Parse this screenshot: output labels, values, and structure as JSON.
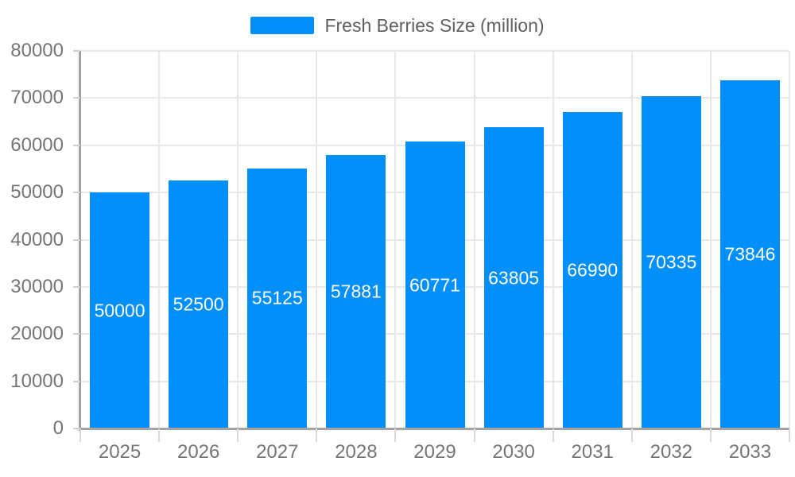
{
  "legend": {
    "label": "Fresh Berries Size (million)"
  },
  "chart_data": {
    "type": "bar",
    "title": "",
    "xlabel": "",
    "ylabel": "",
    "series_name": "Fresh Berries Size (million)",
    "categories": [
      "2025",
      "2026",
      "2027",
      "2028",
      "2029",
      "2030",
      "2031",
      "2032",
      "2033"
    ],
    "values": [
      50000,
      52500,
      55125,
      57881,
      60771,
      63805,
      66990,
      70335,
      73846
    ],
    "value_labels": [
      "50000",
      "52500",
      "55125",
      "57881",
      "60771",
      "63805",
      "66990",
      "70335",
      "73846"
    ],
    "ylim": [
      0,
      80000
    ],
    "ytick_step": 10000,
    "yticks": [
      "0",
      "10000",
      "20000",
      "30000",
      "40000",
      "50000",
      "60000",
      "70000",
      "80000"
    ],
    "grid": true,
    "legend_position": "top"
  },
  "colors": {
    "bar": "#008FFB",
    "grid": "#e8e8e8",
    "axis": "#a3a3a3",
    "ytick": "#cfcfcf",
    "xtick": "#d9d9d9",
    "axis_label": "#757575",
    "legend_text": "#5f5f5f",
    "value_label": "#ffffff",
    "background": "#ffffff"
  }
}
